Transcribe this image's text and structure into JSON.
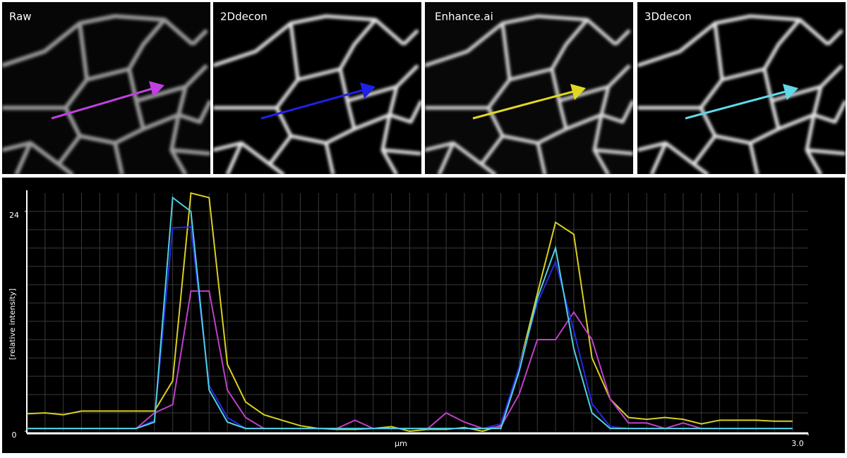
{
  "panels": [
    {
      "label": "Raw"
    },
    {
      "label": "2Ddecon"
    },
    {
      "label": "Enhance.ai"
    },
    {
      "label": "3Ddecon"
    }
  ],
  "chart_data": {
    "type": "line",
    "y_label": "[relative intensity]",
    "x_label": "µm",
    "x": [
      0,
      0.07,
      0.14,
      0.21,
      0.28,
      0.35,
      0.42,
      0.49,
      0.56,
      0.63,
      0.7,
      0.77,
      0.84,
      0.91,
      0.98,
      1.05,
      1.12,
      1.19,
      1.26,
      1.33,
      1.4,
      1.47,
      1.54,
      1.61,
      1.68,
      1.75,
      1.82,
      1.89,
      1.96,
      2.03,
      2.1,
      2.17,
      2.24,
      2.31,
      2.38,
      2.45,
      2.52,
      2.59,
      2.66,
      2.73,
      2.8,
      2.87,
      2.94
    ],
    "xlim": [
      0,
      3
    ],
    "xticks": [
      {
        "value": 3,
        "label": "3.0"
      }
    ],
    "ylim": [
      0,
      26
    ],
    "yticks": [
      0,
      24
    ],
    "grid": true,
    "series": [
      {
        "name": "Enhance.ai",
        "color": "#d8d020",
        "values": [
          1.9,
          2.0,
          1.8,
          2.2,
          2.2,
          2.2,
          2.2,
          2.2,
          5.5,
          26,
          25.5,
          7.3,
          3.2,
          1.8,
          1.2,
          0.6,
          0.3,
          0.2,
          0.2,
          0.3,
          0.5,
          0,
          0.2,
          0.2,
          0.4,
          0,
          0.6,
          7,
          15,
          22.8,
          21.5,
          8,
          3.5,
          1.5,
          1.3,
          1.5,
          1.3,
          0.8,
          1.2,
          1.2,
          1.2,
          1.1,
          1.1
        ]
      },
      {
        "name": "Raw",
        "color": "#c040c8",
        "values": [
          0.3,
          0.3,
          0.3,
          0.3,
          0.3,
          0.3,
          0.3,
          2.0,
          2.9,
          15.3,
          15.3,
          4.5,
          1.5,
          0.3,
          0.3,
          0.3,
          0.3,
          0.3,
          1.2,
          0.3,
          0.3,
          0.3,
          0.3,
          2.0,
          1.0,
          0.3,
          0.5,
          4,
          10,
          10,
          13,
          10,
          3.5,
          0.9,
          0.9,
          0.3,
          0.9,
          0.3,
          0.3,
          0.3,
          0.3,
          0.3,
          0.3
        ]
      },
      {
        "name": "2Ddecon",
        "color": "#2828e0",
        "values": [
          0.3,
          0.3,
          0.3,
          0.3,
          0.3,
          0.3,
          0.3,
          1.2,
          22.2,
          22.3,
          5,
          1.5,
          0.3,
          0.3,
          0.3,
          0.3,
          0.3,
          0.3,
          0.3,
          0.3,
          0.3,
          0.3,
          0.3,
          0.3,
          0.3,
          0.3,
          0.8,
          7,
          14,
          18.5,
          11,
          3,
          0.5,
          0.3,
          0.3,
          0.3,
          0.3,
          0.3,
          0.3,
          0.3,
          0.3,
          0.3,
          0.3
        ]
      },
      {
        "name": "3Ddecon",
        "color": "#50d0e0",
        "values": [
          0.3,
          0.3,
          0.3,
          0.3,
          0.3,
          0.3,
          0.3,
          1.0,
          25.5,
          24,
          4.5,
          1.0,
          0.3,
          0.3,
          0.3,
          0.3,
          0.3,
          0.3,
          0.3,
          0.3,
          0.3,
          0.3,
          0.3,
          0.3,
          0.3,
          0.3,
          0.3,
          6.5,
          14.5,
          20,
          9,
          2,
          0.3,
          0.3,
          0.3,
          0.3,
          0.3,
          0.3,
          0.3,
          0.3,
          0.3,
          0.3,
          0.3
        ]
      }
    ]
  }
}
